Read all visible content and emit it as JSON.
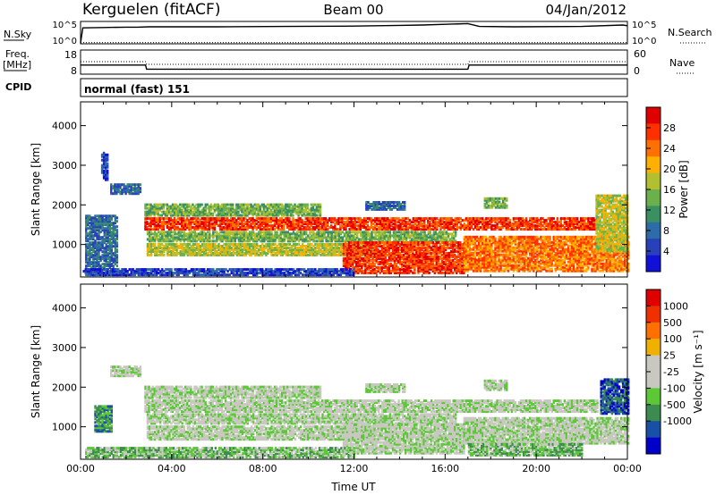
{
  "header": {
    "station": "Kerguelen (fitACF)",
    "beam": "Beam 00",
    "date": "04/Jan/2012"
  },
  "chart_data": [
    {
      "type": "line",
      "panel": "noise",
      "left_label": "N.Sky",
      "left_ticks": [
        "10^5",
        "10^0"
      ],
      "right_label": "N.Search",
      "right_ticks": [
        "10^5",
        "10^0"
      ],
      "x": [
        0,
        0.1,
        1,
        2,
        2.5,
        3,
        6,
        9,
        12,
        14,
        15,
        16,
        17,
        17.5,
        19,
        22,
        23.8,
        24
      ],
      "sky": [
        0,
        4.2,
        4.3,
        4.4,
        4.4,
        4.5,
        4.5,
        4.6,
        4.7,
        4.9,
        5.0,
        5.2,
        5.4,
        4.6,
        4.5,
        4.6,
        5.0,
        4.8
      ],
      "search": [
        0,
        0.1,
        0.1,
        0.1,
        0.1,
        0.1,
        0.1,
        0.1,
        0.1,
        0.1,
        0.1,
        0.1,
        0.1,
        0.1,
        0.1,
        0.1,
        0.1,
        0.1
      ]
    },
    {
      "type": "line",
      "panel": "frequency",
      "left_label": "Freq.",
      "left_label2": "[MHz]",
      "left_ticks": [
        "18",
        "8"
      ],
      "right_label": "Nave",
      "right_ticks": [
        "60",
        "0"
      ],
      "freq_x": [
        0,
        2.85,
        2.9,
        17,
        17.05,
        24
      ],
      "freq": [
        12,
        12,
        10,
        10,
        12,
        12
      ],
      "nave_x": [
        0,
        2.85,
        2.9,
        17,
        17.05,
        24
      ],
      "nave": [
        34,
        34,
        26,
        26,
        34,
        34
      ]
    },
    {
      "type": "table",
      "panel": "cpid",
      "label": "CPID",
      "text": "normal (fast) 151"
    },
    {
      "type": "heatmap",
      "panel": "power",
      "ylabel": "Slant Range [km]",
      "y_ticks": [
        1000,
        2000,
        3000,
        4000
      ],
      "ylim": [
        180,
        4600
      ],
      "xlim": [
        0,
        24
      ],
      "colorbar_label": "Power [dB]",
      "colorbar_ticks": [
        4,
        8,
        12,
        16,
        20,
        24,
        28
      ],
      "colorbar_range": [
        0,
        32
      ],
      "colors": [
        "#1010d8",
        "#2840b8",
        "#2c6ca8",
        "#3a9060",
        "#6cb04c",
        "#b0c030",
        "#ffb000",
        "#ff7000",
        "#ff3000",
        "#e00000"
      ],
      "regions": [
        {
          "x0": 0.2,
          "x1": 1.6,
          "y0": 200,
          "y1": 1700,
          "level": 2
        },
        {
          "x0": 0.9,
          "x1": 1.2,
          "y0": 2600,
          "y1": 3300,
          "level": 1
        },
        {
          "x0": 1.3,
          "x1": 2.6,
          "y0": 2250,
          "y1": 2500,
          "level": 2
        },
        {
          "x0": 2.8,
          "x1": 22.7,
          "y0": 1350,
          "y1": 1650,
          "level": 8
        },
        {
          "x0": 2.8,
          "x1": 10.5,
          "y0": 1700,
          "y1": 2000,
          "level": 4
        },
        {
          "x0": 2.9,
          "x1": 16.5,
          "y0": 1050,
          "y1": 1300,
          "level": 4
        },
        {
          "x0": 2.9,
          "x1": 12.8,
          "y0": 700,
          "y1": 1000,
          "level": 5
        },
        {
          "x0": 11.5,
          "x1": 16.8,
          "y0": 250,
          "y1": 1050,
          "level": 8
        },
        {
          "x0": 16.8,
          "x1": 24.0,
          "y0": 300,
          "y1": 1200,
          "level": 7
        },
        {
          "x0": 12.5,
          "x1": 14.2,
          "y0": 1850,
          "y1": 2050,
          "level": 2
        },
        {
          "x0": 17.7,
          "x1": 18.7,
          "y0": 1900,
          "y1": 2150,
          "level": 4
        },
        {
          "x0": 22.6,
          "x1": 24.0,
          "y0": 800,
          "y1": 2200,
          "level": 5
        },
        {
          "x0": 0.1,
          "x1": 12.0,
          "y0": 200,
          "y1": 350,
          "level": 1
        }
      ]
    },
    {
      "type": "heatmap",
      "panel": "velocity",
      "ylabel": "Slant Range [km]",
      "y_ticks": [
        1000,
        2000,
        3000,
        4000
      ],
      "ylim": [
        180,
        4600
      ],
      "xlim": [
        0,
        24
      ],
      "xlabel": "Time UT",
      "x_ticks": [
        "00:00",
        "04:00",
        "08:00",
        "12:00",
        "16:00",
        "20:00",
        "00:00"
      ],
      "colorbar_label": "Velocity [m s⁻¹]",
      "colorbar_ticks": [
        1000,
        500,
        100,
        25,
        -25,
        -100,
        -500,
        -1000
      ],
      "colors": [
        "#0000c8",
        "#1850a8",
        "#3c8c50",
        "#5cc838",
        "#c8c8c0",
        "#c8c8c0",
        "#f0b000",
        "#ff7000",
        "#f03000",
        "#e00000"
      ],
      "regions": [
        {
          "x0": 0.6,
          "x1": 1.4,
          "y0": 850,
          "y1": 1500,
          "level": 2
        },
        {
          "x0": 1.3,
          "x1": 2.6,
          "y0": 2250,
          "y1": 2500,
          "level": 4
        },
        {
          "x0": 2.8,
          "x1": 22.7,
          "y0": 1350,
          "y1": 1650,
          "level": 4
        },
        {
          "x0": 2.8,
          "x1": 10.5,
          "y0": 1700,
          "y1": 2000,
          "level": 4
        },
        {
          "x0": 2.9,
          "x1": 16.5,
          "y0": 1050,
          "y1": 1300,
          "level": 4
        },
        {
          "x0": 2.9,
          "x1": 12.8,
          "y0": 650,
          "y1": 1000,
          "level": 4
        },
        {
          "x0": 11.5,
          "x1": 16.8,
          "y0": 300,
          "y1": 1050,
          "level": 4
        },
        {
          "x0": 16.8,
          "x1": 24.0,
          "y0": 550,
          "y1": 1200,
          "level": 4
        },
        {
          "x0": 17.0,
          "x1": 22.0,
          "y0": 250,
          "y1": 550,
          "level": 3
        },
        {
          "x0": 0.2,
          "x1": 12.0,
          "y0": 200,
          "y1": 450,
          "level": 3
        },
        {
          "x0": 12.5,
          "x1": 14.2,
          "y0": 1850,
          "y1": 2050,
          "level": 4
        },
        {
          "x0": 17.7,
          "x1": 18.7,
          "y0": 1900,
          "y1": 2150,
          "level": 4
        },
        {
          "x0": 22.8,
          "x1": 24.0,
          "y0": 1300,
          "y1": 2200,
          "level": 1
        }
      ]
    }
  ]
}
